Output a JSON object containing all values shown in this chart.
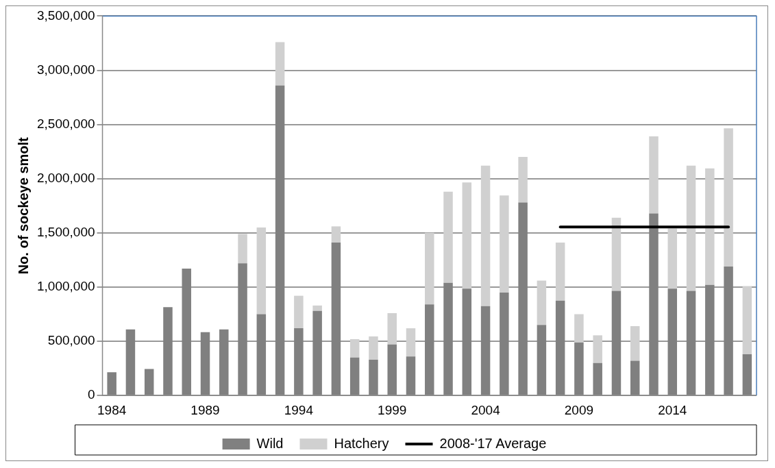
{
  "chart_data": {
    "type": "bar",
    "ylabel": "No. of sockeye smolt",
    "categories": [
      "1984",
      null,
      null,
      null,
      null,
      "1989",
      null,
      null,
      null,
      null,
      "1994",
      null,
      null,
      null,
      null,
      "1999",
      null,
      null,
      null,
      null,
      "2004",
      null,
      null,
      null,
      null,
      "2009",
      null,
      null,
      null,
      null,
      "2014",
      null,
      null,
      null,
      null
    ],
    "stacked": true,
    "series": [
      {
        "name": "Wild",
        "color": "#808080",
        "values": [
          215000,
          610000,
          245000,
          815000,
          1170000,
          585000,
          610000,
          1220000,
          750000,
          2860000,
          620000,
          780000,
          1410000,
          350000,
          330000,
          470000,
          360000,
          840000,
          1040000,
          985000,
          825000,
          950000,
          1780000,
          650000,
          875000,
          490000,
          300000,
          965000,
          320000,
          1680000,
          985000,
          965000,
          1020000,
          1190000,
          380000
        ]
      },
      {
        "name": "Hatchery",
        "color": "#d0d0d0",
        "values": [
          0,
          0,
          0,
          0,
          0,
          0,
          0,
          270000,
          800000,
          400000,
          300000,
          50000,
          150000,
          170000,
          215000,
          290000,
          260000,
          660000,
          840000,
          980000,
          1295000,
          895000,
          420000,
          410000,
          535000,
          260000,
          255000,
          675000,
          320000,
          710000,
          555000,
          1155000,
          1075000,
          1275000,
          630000
        ]
      },
      {
        "name": "2008-'17 Average",
        "type": "line",
        "color": "#000000",
        "marker": "none",
        "line_style": "solid",
        "values": [
          null,
          null,
          null,
          null,
          null,
          null,
          null,
          null,
          null,
          null,
          null,
          null,
          null,
          null,
          null,
          null,
          null,
          null,
          null,
          null,
          null,
          null,
          null,
          null,
          1555000,
          1555000,
          1555000,
          1555000,
          1555000,
          1555000,
          1555000,
          1555000,
          1555000,
          1555000,
          null
        ]
      }
    ],
    "ylim": [
      0,
      3500000
    ],
    "yticks": [
      0,
      {
        "value": 500000,
        "label": "500,000"
      },
      {
        "value": 1000000,
        "label": "1,000,000"
      },
      {
        "value": 1500000,
        "label": "1,500,000"
      },
      {
        "value": 2000000,
        "label": "2,000,000"
      },
      {
        "value": 2500000,
        "label": "2,500,000"
      },
      {
        "value": 3000000,
        "label": "3,000,000"
      },
      {
        "value": 3500000,
        "label": "3,500,000"
      }
    ],
    "grid": "y",
    "legend": "bottom"
  }
}
